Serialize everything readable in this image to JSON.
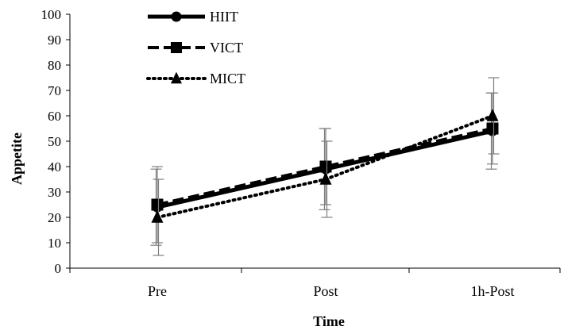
{
  "chart_data": {
    "type": "line",
    "categories": [
      "Pre",
      "Post",
      "1h-Post"
    ],
    "xlabel": "Time",
    "ylabel": "Appetite",
    "ylim": [
      0,
      100
    ],
    "yticks": [
      0,
      10,
      20,
      30,
      40,
      50,
      60,
      70,
      80,
      90,
      100
    ],
    "grid": false,
    "legend_position": "top-left",
    "series": [
      {
        "name": "HIIT",
        "values": [
          24,
          39,
          54
        ],
        "error": [
          15,
          16,
          15
        ],
        "marker": "circle",
        "line_style": "solid",
        "color": "#000000"
      },
      {
        "name": "VICT",
        "values": [
          25,
          40,
          55
        ],
        "error": [
          15,
          15,
          14
        ],
        "marker": "square",
        "line_style": "dashed",
        "color": "#000000"
      },
      {
        "name": "MICT",
        "values": [
          20,
          35,
          60
        ],
        "error": [
          15,
          15,
          15
        ],
        "marker": "triangle",
        "line_style": "dotted",
        "color": "#000000"
      }
    ],
    "error_bar_color": "#7f7f7f"
  }
}
